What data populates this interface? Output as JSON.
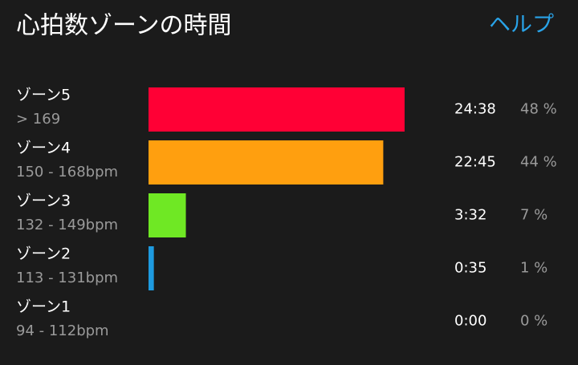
{
  "chart_data": {
    "type": "bar",
    "title": "心拍数ゾーンの時間",
    "help": "ヘルプ",
    "categories": [
      "ゾーン5",
      "ゾーン4",
      "ゾーン3",
      "ゾーン2",
      "ゾーン1"
    ],
    "ranges": [
      "> 169",
      "150 - 168bpm",
      "132 - 149bpm",
      "113 - 131bpm",
      "94 - 112bpm"
    ],
    "times": [
      "24:38",
      "22:45",
      "3:32",
      "0:35",
      "0:00"
    ],
    "values": [
      48,
      44,
      7,
      1,
      0
    ],
    "value_labels": [
      "48 %",
      "44 %",
      "7 %",
      "1 %",
      "0 %"
    ],
    "colors": [
      "#ff0035",
      "#ff9f0f",
      "#6fe824",
      "#1e9be0",
      "#888888"
    ]
  }
}
